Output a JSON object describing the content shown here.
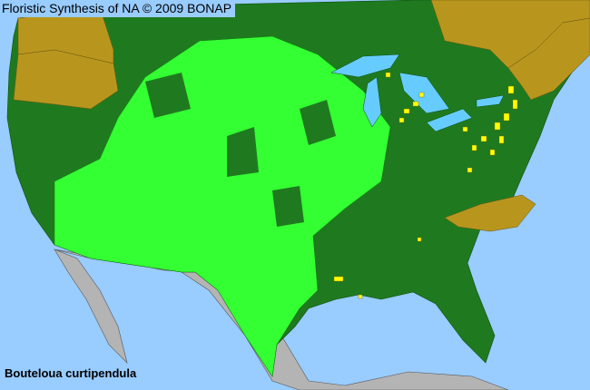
{
  "header": {
    "title": "Floristic Synthesis of NA © 2009 BONAP"
  },
  "species": {
    "name": "Bouteloua curtipendula"
  },
  "colors": {
    "ocean": "#99ccff",
    "lakes": "#66ccff",
    "present_native": "#1f7a1f",
    "present_county": "#33ff33",
    "present_county_alt": "#22cc22",
    "absent_state": "#b8961e",
    "noncountry": "#b4b4b4",
    "adventive_or_rare": "#ffff00"
  }
}
